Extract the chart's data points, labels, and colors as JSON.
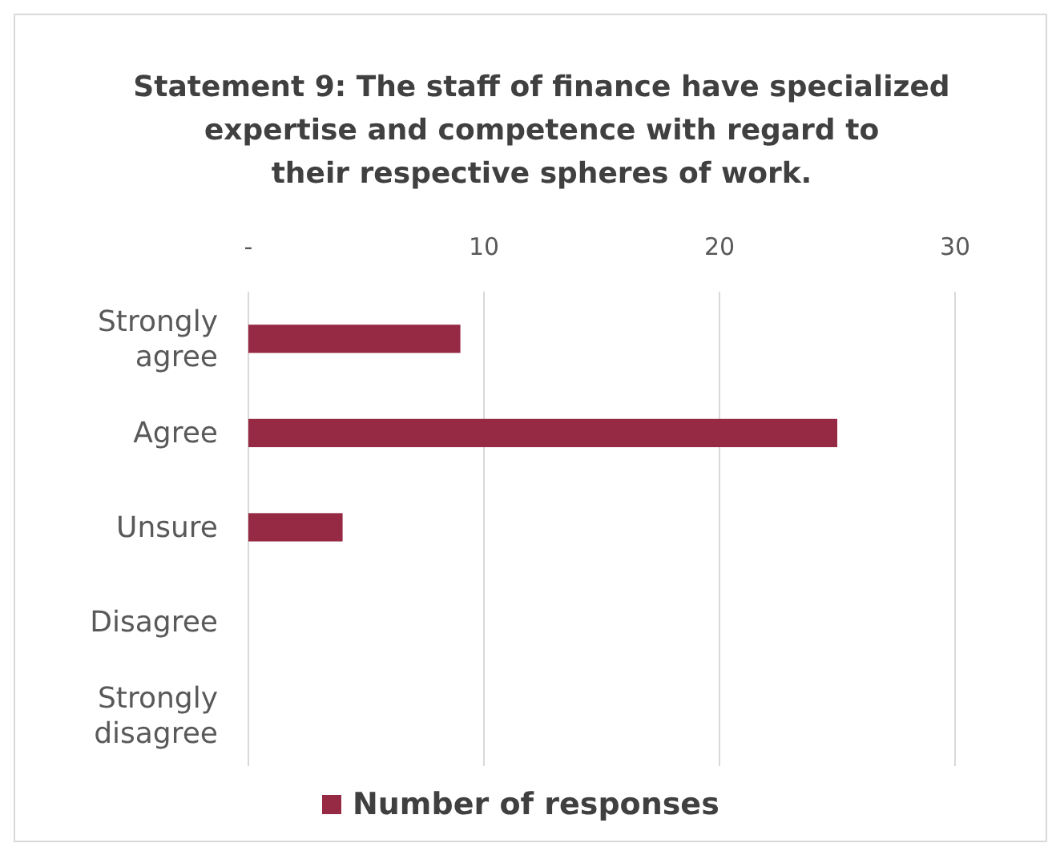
{
  "chart_data": {
    "type": "bar",
    "orientation": "horizontal",
    "title": "Statement 9: The staff of finance have specialized\nexpertise and competence with regard to\ntheir respective spheres of work.",
    "categories": [
      "Strongly\nagree",
      "Agree",
      "Unsure",
      "Disagree",
      "Strongly\ndisagree"
    ],
    "series": [
      {
        "name": "Number of responses",
        "color": "#962a44",
        "values": [
          9,
          25,
          4,
          0,
          0
        ]
      }
    ],
    "xlim": [
      0,
      30
    ],
    "xticks": [
      {
        "value": 0,
        "label": "-"
      },
      10,
      20,
      30
    ],
    "grid": "x",
    "legend": "bottom"
  }
}
